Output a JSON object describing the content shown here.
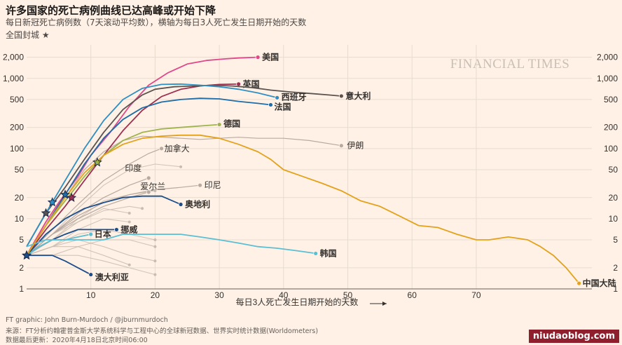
{
  "header": {
    "title": "许多国家的死亡病例曲线已达高峰或开始下降",
    "subtitle": "每日新冠死亡病例数（7天滚动平均数），横轴为每日3人死亡发生日期开始的天数",
    "lockdown_label": "全国封城 ★"
  },
  "branding": {
    "publisher": "FINANCIAL TIMES",
    "watermark": "niudaoblog.com"
  },
  "footer": {
    "credit": "FT graphic: John Burn-Murdoch / @jburnmurdoch",
    "source": "来源：FT分析约翰霍普金斯大学系统科学与工程中心的全球新冠数据、世界实时统计数据(Worldometers)",
    "updated": "数据最后更新：2020年4月18日北京时间06:00"
  },
  "colors": {
    "background": "#fff1e5",
    "grid": "#e7dbcf",
    "background_lines": "#c9bcb2",
    "star": "#1a2b4a"
  },
  "chart_data": {
    "type": "line",
    "title": "许多国家的死亡病例曲线已达高峰或开始下降",
    "xlabel": "每日3人死亡发生日期开始的天数",
    "ylabel": "",
    "yscale": "log",
    "xlim": [
      0,
      88
    ],
    "ylim": [
      1,
      3000
    ],
    "x_ticks": [
      10,
      20,
      30,
      40,
      50,
      60,
      70
    ],
    "y_ticks": [
      1,
      2,
      5,
      10,
      20,
      50,
      100,
      200,
      500,
      1000,
      2000
    ],
    "y_tick_labels": [
      "1",
      "2",
      "5",
      "10",
      "20",
      "50",
      "100",
      "200",
      "500",
      "1,000",
      "2,000"
    ],
    "grid": true,
    "series": [
      {
        "name": "美国",
        "color": "#e0488b",
        "label_color": "#e0488b",
        "points": [
          [
            0,
            3
          ],
          [
            3,
            9
          ],
          [
            5,
            17
          ],
          [
            8,
            40
          ],
          [
            10,
            80
          ],
          [
            13,
            170
          ],
          [
            16,
            400
          ],
          [
            19,
            800
          ],
          [
            22,
            1200
          ],
          [
            25,
            1600
          ],
          [
            28,
            1800
          ],
          [
            31,
            1900
          ],
          [
            33,
            1950
          ],
          [
            36,
            2000
          ]
        ]
      },
      {
        "name": "英国",
        "color": "#9e2f50",
        "label_color": "#9e2f50",
        "points": [
          [
            0,
            3
          ],
          [
            3,
            7
          ],
          [
            6,
            15
          ],
          [
            9,
            35
          ],
          [
            12,
            80
          ],
          [
            15,
            180
          ],
          [
            18,
            350
          ],
          [
            21,
            550
          ],
          [
            24,
            700
          ],
          [
            27,
            780
          ],
          [
            30,
            820
          ],
          [
            33,
            830
          ]
        ]
      },
      {
        "name": "意大利",
        "color": "#5a5350",
        "label_color": "#33302e",
        "points": [
          [
            0,
            4
          ],
          [
            3,
            12
          ],
          [
            6,
            28
          ],
          [
            9,
            70
          ],
          [
            12,
            170
          ],
          [
            15,
            360
          ],
          [
            18,
            580
          ],
          [
            20,
            700
          ],
          [
            23,
            760
          ],
          [
            26,
            780
          ],
          [
            29,
            800
          ],
          [
            32,
            780
          ],
          [
            35,
            740
          ],
          [
            38,
            680
          ],
          [
            41,
            640
          ],
          [
            44,
            610
          ],
          [
            47,
            580
          ],
          [
            49,
            560
          ]
        ]
      },
      {
        "name": "西班牙",
        "color": "#2e8fc4",
        "label_color": "#0f5499",
        "points": [
          [
            0,
            4
          ],
          [
            3,
            12
          ],
          [
            6,
            35
          ],
          [
            9,
            100
          ],
          [
            12,
            250
          ],
          [
            15,
            500
          ],
          [
            18,
            720
          ],
          [
            21,
            820
          ],
          [
            24,
            830
          ],
          [
            27,
            800
          ],
          [
            30,
            760
          ],
          [
            33,
            700
          ],
          [
            36,
            620
          ],
          [
            39,
            530
          ]
        ]
      },
      {
        "name": "法国",
        "color": "#1e6ca8",
        "label_color": "#1e6ca8",
        "points": [
          [
            0,
            3
          ],
          [
            3,
            8
          ],
          [
            6,
            22
          ],
          [
            9,
            60
          ],
          [
            12,
            140
          ],
          [
            15,
            260
          ],
          [
            18,
            380
          ],
          [
            21,
            460
          ],
          [
            24,
            500
          ],
          [
            27,
            520
          ],
          [
            30,
            510
          ],
          [
            33,
            470
          ],
          [
            36,
            440
          ],
          [
            38,
            420
          ]
        ]
      },
      {
        "name": "德国",
        "color": "#9eb34a",
        "label_color": "#6f8a20",
        "points": [
          [
            0,
            3
          ],
          [
            3,
            8
          ],
          [
            6,
            18
          ],
          [
            9,
            40
          ],
          [
            12,
            80
          ],
          [
            15,
            130
          ],
          [
            18,
            170
          ],
          [
            21,
            190
          ],
          [
            24,
            200
          ],
          [
            27,
            210
          ],
          [
            30,
            220
          ]
        ]
      },
      {
        "name": "伊朗",
        "color": "#b8aaa0",
        "label_color": "#66605c",
        "points": [
          [
            0,
            3
          ],
          [
            3,
            8
          ],
          [
            6,
            20
          ],
          [
            9,
            50
          ],
          [
            12,
            90
          ],
          [
            15,
            130
          ],
          [
            18,
            150
          ],
          [
            21,
            145
          ],
          [
            24,
            140
          ],
          [
            27,
            135
          ],
          [
            30,
            140
          ],
          [
            33,
            145
          ],
          [
            36,
            140
          ],
          [
            40,
            140
          ],
          [
            44,
            130
          ],
          [
            49,
            110
          ]
        ]
      },
      {
        "name": "加拿大",
        "color": "#b8aaa0",
        "label_color": "#66605c",
        "points": [
          [
            0,
            3
          ],
          [
            4,
            7
          ],
          [
            8,
            16
          ],
          [
            12,
            35
          ],
          [
            16,
            60
          ],
          [
            19,
            85
          ],
          [
            21,
            100
          ]
        ]
      },
      {
        "name": "印度",
        "color": "#b8aaa0",
        "label_color": "#66605c",
        "points": [
          [
            0,
            3
          ],
          [
            4,
            6
          ],
          [
            8,
            12
          ],
          [
            12,
            20
          ],
          [
            16,
            30
          ],
          [
            19,
            38
          ]
        ]
      },
      {
        "name": "印尼",
        "color": "#b8aaa0",
        "label_color": "#66605c",
        "points": [
          [
            0,
            3
          ],
          [
            4,
            6
          ],
          [
            8,
            11
          ],
          [
            12,
            17
          ],
          [
            16,
            22
          ],
          [
            20,
            26
          ],
          [
            24,
            28
          ],
          [
            27,
            30
          ]
        ]
      },
      {
        "name": "爱尔兰",
        "color": "#b8aaa0",
        "label_color": "#66605c",
        "points": [
          [
            0,
            3
          ],
          [
            4,
            6
          ],
          [
            8,
            10
          ],
          [
            12,
            15
          ],
          [
            16,
            20
          ],
          [
            19,
            24
          ]
        ]
      },
      {
        "name": "奥地利",
        "color": "#1b4e8b",
        "label_color": "#1a1817",
        "points": [
          [
            0,
            3
          ],
          [
            3,
            6
          ],
          [
            6,
            10
          ],
          [
            9,
            14
          ],
          [
            12,
            17
          ],
          [
            15,
            20
          ],
          [
            18,
            21
          ],
          [
            21,
            21
          ],
          [
            24,
            16
          ]
        ]
      },
      {
        "name": "挪威",
        "color": "#1b4e8b",
        "label_color": "#1b4e8b",
        "points": [
          [
            0,
            3
          ],
          [
            2,
            4
          ],
          [
            4,
            5
          ],
          [
            6,
            6
          ],
          [
            8,
            7
          ],
          [
            10,
            7
          ],
          [
            12,
            7
          ],
          [
            14,
            7
          ]
        ]
      },
      {
        "name": "日本",
        "color": "#5bbfd4",
        "label_color": "#2a9fb8",
        "points": [
          [
            0,
            3
          ],
          [
            2,
            4
          ],
          [
            4,
            5
          ],
          [
            6,
            5
          ],
          [
            8,
            5.5
          ],
          [
            10,
            6
          ]
        ]
      },
      {
        "name": "韩国",
        "color": "#5bbfd4",
        "label_color": "#2a9fb8",
        "points": [
          [
            0,
            4
          ],
          [
            3,
            5
          ],
          [
            6,
            5
          ],
          [
            9,
            5
          ],
          [
            12,
            5
          ],
          [
            15,
            6
          ],
          [
            18,
            6
          ],
          [
            21,
            6
          ],
          [
            24,
            6
          ],
          [
            27,
            5.5
          ],
          [
            30,
            5
          ],
          [
            33,
            4.5
          ],
          [
            36,
            4
          ],
          [
            39,
            3.8
          ],
          [
            42,
            3.5
          ],
          [
            45,
            3.2
          ]
        ]
      },
      {
        "name": "澳大利亚",
        "color": "#1b4e8b",
        "label_color": "#1b4e8b",
        "points": [
          [
            0,
            3
          ],
          [
            2,
            3
          ],
          [
            4,
            3
          ],
          [
            6,
            2.5
          ],
          [
            8,
            2
          ],
          [
            10,
            1.6
          ]
        ]
      },
      {
        "name": "中国大陆",
        "color": "#e3a21a",
        "label_color": "#c98a10",
        "points": [
          [
            0,
            3
          ],
          [
            3,
            8
          ],
          [
            6,
            20
          ],
          [
            9,
            45
          ],
          [
            12,
            80
          ],
          [
            15,
            115
          ],
          [
            18,
            140
          ],
          [
            21,
            150
          ],
          [
            24,
            155
          ],
          [
            27,
            155
          ],
          [
            30,
            140
          ],
          [
            33,
            115
          ],
          [
            36,
            90
          ],
          [
            38,
            70
          ],
          [
            40,
            50
          ],
          [
            43,
            40
          ],
          [
            46,
            32
          ],
          [
            49,
            25
          ],
          [
            52,
            18
          ],
          [
            55,
            15
          ],
          [
            58,
            11
          ],
          [
            61,
            8
          ],
          [
            64,
            7.5
          ],
          [
            67,
            6
          ],
          [
            70,
            5
          ],
          [
            72,
            5
          ],
          [
            75,
            5.5
          ],
          [
            78,
            5
          ],
          [
            80,
            4
          ],
          [
            82,
            3
          ],
          [
            84,
            2
          ],
          [
            86,
            1.2
          ]
        ]
      }
    ],
    "background_series": [
      [
        [
          0,
          3
        ],
        [
          4,
          6
        ],
        [
          8,
          14
        ],
        [
          12,
          30
        ],
        [
          16,
          50
        ],
        [
          20,
          60
        ],
        [
          24,
          55
        ]
      ],
      [
        [
          0,
          3
        ],
        [
          4,
          5
        ],
        [
          8,
          10
        ],
        [
          12,
          18
        ],
        [
          16,
          22
        ],
        [
          20,
          25
        ]
      ],
      [
        [
          0,
          3
        ],
        [
          4,
          4
        ],
        [
          8,
          6
        ],
        [
          12,
          7
        ],
        [
          16,
          6
        ],
        [
          20,
          5
        ]
      ],
      [
        [
          0,
          3
        ],
        [
          4,
          4
        ],
        [
          8,
          5
        ],
        [
          12,
          4
        ],
        [
          16,
          3
        ],
        [
          20,
          2.5
        ]
      ],
      [
        [
          0,
          3
        ],
        [
          4,
          3
        ],
        [
          8,
          3
        ],
        [
          12,
          2.5
        ],
        [
          16,
          2
        ],
        [
          20,
          1.6
        ]
      ],
      [
        [
          0,
          3
        ],
        [
          4,
          5
        ],
        [
          8,
          9
        ],
        [
          12,
          14
        ],
        [
          16,
          12
        ]
      ],
      [
        [
          0,
          3
        ],
        [
          4,
          4
        ],
        [
          8,
          4
        ],
        [
          12,
          3
        ],
        [
          16,
          2.2
        ]
      ],
      [
        [
          0,
          3
        ],
        [
          4,
          6
        ],
        [
          8,
          9
        ],
        [
          12,
          13
        ],
        [
          16,
          15
        ],
        [
          18,
          14
        ]
      ],
      [
        [
          0,
          3
        ],
        [
          4,
          4
        ],
        [
          8,
          7
        ],
        [
          12,
          10
        ],
        [
          16,
          9
        ]
      ],
      [
        [
          0,
          3
        ],
        [
          4,
          3
        ],
        [
          8,
          4
        ],
        [
          12,
          5
        ],
        [
          16,
          5
        ],
        [
          20,
          4
        ]
      ]
    ],
    "lockdowns": [
      {
        "country": "意大利",
        "day": 3
      },
      {
        "country": "西班牙",
        "day": 4
      },
      {
        "country": "法国",
        "day": 6
      },
      {
        "country": "英国",
        "day": 7
      },
      {
        "country": "德国",
        "day": 11
      },
      {
        "country": "奥地利",
        "day": 0
      },
      {
        "country": "挪威",
        "day": 0
      }
    ]
  }
}
